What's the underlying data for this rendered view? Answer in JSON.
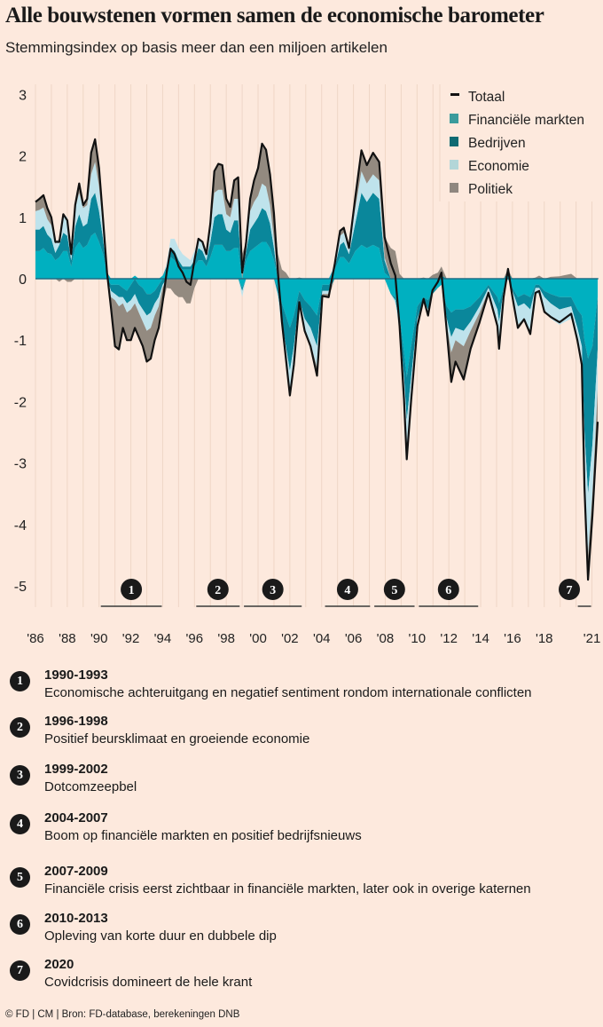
{
  "title": "Alle bouwstenen vormen samen de economische barometer",
  "subtitle": "Stemmingsindex op basis meer dan een miljoen artikelen",
  "chart_data": {
    "type": "area",
    "stacked": true,
    "ylim": [
      -5.3,
      3
    ],
    "xlim": [
      1986,
      2021.4
    ],
    "y_ticks": [
      3,
      2,
      1,
      0,
      -1,
      -2,
      -3,
      -4,
      -5
    ],
    "y_tick_labels": [
      "3",
      "2",
      "1",
      "0",
      "-1",
      "-2",
      "-3",
      "-4",
      "-5"
    ],
    "x_ticks": [
      1986,
      1988,
      1990,
      1992,
      1994,
      1996,
      1998,
      2000,
      2002,
      2004,
      2006,
      2008,
      2010,
      2012,
      2014,
      2016,
      2018,
      2021
    ],
    "x_tick_labels": [
      "'86",
      "'88",
      "'90",
      "'92",
      "'94",
      "'96",
      "'98",
      "'00",
      "'02",
      "'04",
      "'06",
      "'08",
      "'10",
      "'12",
      "'14",
      "'16",
      "'18",
      "'21"
    ],
    "grid": "vertical yearly lines",
    "legend_position": "top-right",
    "legend": [
      {
        "name": "Totaal",
        "color": "#111111",
        "kind": "line"
      },
      {
        "name": "Financiële markten",
        "color": "#3a9b9c",
        "kind": "area"
      },
      {
        "name": "Bedrijven",
        "color": "#0e6a72",
        "kind": "area"
      },
      {
        "name": "Economie",
        "color": "#b3d6d8",
        "kind": "area"
      },
      {
        "name": "Politiek",
        "color": "#8f877f",
        "kind": "area"
      }
    ],
    "area_colors": [
      "#00b0c0",
      "#0a879b",
      "#bfe3ec",
      "#938a80"
    ],
    "series_order": [
      "Financiële markten",
      "Bedrijven",
      "Economie",
      "Politiek"
    ],
    "columns": [
      "year",
      "Totaal",
      "Financiële markten",
      "Bedrijven",
      "Economie",
      "Politiek"
    ],
    "points": [
      [
        1986.0,
        1.25,
        0.45,
        0.35,
        0.3,
        0.15
      ],
      [
        1986.25,
        1.3,
        0.45,
        0.35,
        0.32,
        0.18
      ],
      [
        1986.5,
        1.36,
        0.5,
        0.36,
        0.3,
        0.2
      ],
      [
        1986.75,
        1.15,
        0.42,
        0.3,
        0.25,
        0.18
      ],
      [
        1987.0,
        1.0,
        0.4,
        0.25,
        0.22,
        0.13
      ],
      [
        1987.25,
        0.6,
        0.3,
        0.12,
        0.15,
        0.03
      ],
      [
        1987.5,
        0.6,
        0.35,
        0.2,
        0.1,
        -0.05
      ],
      [
        1987.75,
        1.05,
        0.45,
        0.3,
        0.3,
        0
      ],
      [
        1988.0,
        0.95,
        0.45,
        0.25,
        0.3,
        -0.05
      ],
      [
        1988.25,
        0.4,
        0.2,
        0.1,
        0.15,
        -0.05
      ],
      [
        1988.5,
        1.2,
        0.5,
        0.35,
        0.3,
        0.05
      ],
      [
        1988.75,
        1.55,
        0.6,
        0.45,
        0.35,
        0.15
      ],
      [
        1989.0,
        1.2,
        0.5,
        0.35,
        0.3,
        0.05
      ],
      [
        1989.25,
        1.3,
        0.55,
        0.35,
        0.3,
        0.1
      ],
      [
        1989.5,
        2.05,
        0.7,
        0.6,
        0.4,
        0.35
      ],
      [
        1989.75,
        2.27,
        0.75,
        0.65,
        0.5,
        0.37
      ],
      [
        1990.0,
        1.8,
        0.6,
        0.5,
        0.4,
        0.3
      ],
      [
        1990.25,
        0.97,
        0.4,
        0.25,
        0.2,
        0.12
      ],
      [
        1990.5,
        0.1,
        0.1,
        0,
        0,
        0
      ],
      [
        1990.75,
        -0.48,
        -0.1,
        -0.1,
        -0.1,
        -0.18
      ],
      [
        1991.0,
        -1.1,
        -0.1,
        -0.15,
        -0.1,
        -0.75
      ],
      [
        1991.25,
        -1.15,
        -0.1,
        -0.2,
        -0.15,
        -0.7
      ],
      [
        1991.5,
        -0.8,
        -0.15,
        -0.15,
        -0.1,
        -0.4
      ],
      [
        1991.75,
        -1.0,
        -0.2,
        -0.2,
        -0.15,
        -0.45
      ],
      [
        1992.0,
        -1.0,
        -0.1,
        -0.25,
        -0.15,
        -0.5
      ],
      [
        1992.25,
        -0.8,
        0.05,
        -0.25,
        -0.15,
        -0.45
      ],
      [
        1992.5,
        -0.95,
        -0.1,
        -0.3,
        -0.15,
        -0.4
      ],
      [
        1992.75,
        -1.1,
        -0.15,
        -0.35,
        -0.2,
        -0.4
      ],
      [
        1993.0,
        -1.35,
        -0.25,
        -0.35,
        -0.25,
        -0.5
      ],
      [
        1993.25,
        -1.3,
        -0.25,
        -0.3,
        -0.25,
        -0.5
      ],
      [
        1993.5,
        -1.0,
        -0.2,
        -0.2,
        -0.2,
        -0.4
      ],
      [
        1993.75,
        -0.8,
        -0.1,
        -0.2,
        -0.15,
        -0.35
      ],
      [
        1994.0,
        -0.38,
        0.05,
        -0.1,
        -0.05,
        -0.28
      ],
      [
        1994.25,
        0.1,
        0.15,
        0.05,
        0.05,
        -0.15
      ],
      [
        1994.5,
        0.49,
        0.35,
        0.15,
        0.15,
        -0.16
      ],
      [
        1994.75,
        0.4,
        0.3,
        0.15,
        0.2,
        -0.25
      ],
      [
        1995.0,
        0.2,
        0.2,
        0.1,
        0.2,
        -0.3
      ],
      [
        1995.25,
        0.1,
        0.15,
        0.05,
        0.2,
        -0.3
      ],
      [
        1995.5,
        -0.05,
        0.15,
        0.05,
        0.15,
        -0.4
      ],
      [
        1995.75,
        -0.1,
        0.15,
        0.05,
        0.1,
        -0.4
      ],
      [
        1996.0,
        0.3,
        0.2,
        0.1,
        0.15,
        -0.15
      ],
      [
        1996.25,
        0.65,
        0.3,
        0.2,
        0.15,
        0
      ],
      [
        1996.5,
        0.6,
        0.3,
        0.15,
        0.15,
        0
      ],
      [
        1996.75,
        0.4,
        0.2,
        0.1,
        0.1,
        0
      ],
      [
        1997.0,
        0.9,
        0.35,
        0.25,
        0.2,
        0.1
      ],
      [
        1997.25,
        1.75,
        0.55,
        0.45,
        0.4,
        0.35
      ],
      [
        1997.5,
        1.87,
        0.55,
        0.5,
        0.4,
        0.42
      ],
      [
        1997.75,
        1.85,
        0.55,
        0.5,
        0.4,
        0.4
      ],
      [
        1998.0,
        1.3,
        0.45,
        0.35,
        0.25,
        0.25
      ],
      [
        1998.25,
        1.17,
        0.45,
        0.3,
        0.25,
        0.17
      ],
      [
        1998.5,
        1.6,
        0.5,
        0.45,
        0.35,
        0.3
      ],
      [
        1998.75,
        1.65,
        0.5,
        0.45,
        0.35,
        0.35
      ],
      [
        1999.0,
        0.1,
        -0.15,
        -0.05,
        -0.1,
        0.4
      ],
      [
        1999.25,
        0.6,
        0.3,
        0.15,
        0.1,
        0.05
      ],
      [
        1999.5,
        1.3,
        0.45,
        0.35,
        0.3,
        0.2
      ],
      [
        1999.75,
        1.6,
        0.5,
        0.4,
        0.35,
        0.35
      ],
      [
        2000.0,
        1.8,
        0.55,
        0.45,
        0.35,
        0.45
      ],
      [
        2000.25,
        2.2,
        0.6,
        0.55,
        0.4,
        0.65
      ],
      [
        2000.5,
        2.1,
        0.6,
        0.5,
        0.4,
        0.6
      ],
      [
        2000.75,
        1.7,
        0.5,
        0.4,
        0.3,
        0.5
      ],
      [
        2001.0,
        1.07,
        0.3,
        0.2,
        0.15,
        0.42
      ],
      [
        2001.25,
        0.1,
        -0.15,
        -0.1,
        -0.05,
        0.4
      ],
      [
        2001.5,
        -0.7,
        -0.4,
        -0.3,
        -0.15,
        0.15
      ],
      [
        2001.75,
        -1.3,
        -0.6,
        -0.5,
        -0.3,
        0.1
      ],
      [
        2002.0,
        -1.9,
        -0.8,
        -0.7,
        -0.4,
        0
      ],
      [
        2002.25,
        -1.4,
        -0.6,
        -0.5,
        -0.3,
        0
      ],
      [
        2002.59,
        -0.38,
        -0.2,
        -0.15,
        -0.05,
        0.02
      ],
      [
        2002.93,
        -0.85,
        -0.35,
        -0.3,
        -0.2,
        0
      ],
      [
        2003.3,
        -1.1,
        -0.45,
        -0.35,
        -0.25,
        -0.05
      ],
      [
        2003.71,
        -1.58,
        -0.6,
        -0.5,
        -0.35,
        -0.13
      ],
      [
        2004.04,
        -0.28,
        -0.1,
        -0.1,
        -0.05,
        -0.03
      ],
      [
        2004.44,
        -0.3,
        -0.1,
        -0.1,
        -0.05,
        -0.05
      ],
      [
        2004.83,
        0.25,
        0.15,
        0.05,
        0.05,
        0
      ],
      [
        2005.16,
        0.78,
        0.35,
        0.2,
        0.15,
        0.08
      ],
      [
        2005.39,
        0.83,
        0.35,
        0.25,
        0.15,
        0.08
      ],
      [
        2005.72,
        0.5,
        0.25,
        0.15,
        0.1,
        0
      ],
      [
        2006.11,
        1.32,
        0.45,
        0.45,
        0.25,
        0.17
      ],
      [
        2006.5,
        2.09,
        0.55,
        0.85,
        0.35,
        0.34
      ],
      [
        2006.84,
        1.85,
        0.5,
        0.75,
        0.3,
        0.3
      ],
      [
        2007.23,
        2.05,
        0.55,
        0.85,
        0.3,
        0.35
      ],
      [
        2007.62,
        1.9,
        0.5,
        0.8,
        0.3,
        0.3
      ],
      [
        2007.96,
        0.68,
        0.1,
        0.2,
        0.05,
        0.33
      ],
      [
        2008.35,
        0.25,
        -0.25,
        0,
        0,
        0.5
      ],
      [
        2008.63,
        0.05,
        -0.3,
        -0.05,
        -0.05,
        0.45
      ],
      [
        2008.9,
        -0.77,
        -0.6,
        -0.15,
        -0.1,
        0.08
      ],
      [
        2009.18,
        -1.97,
        -1.2,
        -0.4,
        -0.3,
        -0.07
      ],
      [
        2009.35,
        -2.94,
        -1.6,
        -0.7,
        -0.5,
        -0.14
      ],
      [
        2009.63,
        -1.97,
        -1.1,
        -0.5,
        -0.3,
        -0.07
      ],
      [
        2010.02,
        -0.77,
        -0.45,
        -0.2,
        -0.1,
        -0.02
      ],
      [
        2010.41,
        -0.33,
        -0.3,
        -0.05,
        0,
        0.02
      ],
      [
        2010.69,
        -0.6,
        -0.35,
        -0.15,
        -0.05,
        -0.05
      ],
      [
        2010.97,
        -0.19,
        -0.2,
        -0.05,
        0,
        0.06
      ],
      [
        2011.31,
        -0.05,
        -0.15,
        0,
        0,
        0.1
      ],
      [
        2011.53,
        0.1,
        -0.1,
        0.05,
        0,
        0.15
      ],
      [
        2011.87,
        -0.85,
        -0.45,
        -0.2,
        -0.1,
        -0.1
      ],
      [
        2012.15,
        -1.68,
        -0.55,
        -0.4,
        -0.25,
        -0.48
      ],
      [
        2012.42,
        -1.35,
        -0.5,
        -0.3,
        -0.2,
        -0.35
      ],
      [
        2012.93,
        -1.64,
        -0.5,
        -0.35,
        -0.25,
        -0.54
      ],
      [
        2013.37,
        -1.14,
        -0.45,
        -0.25,
        -0.15,
        -0.29
      ],
      [
        2013.93,
        -0.71,
        -0.3,
        -0.15,
        -0.1,
        -0.16
      ],
      [
        2014.49,
        -0.23,
        -0.1,
        -0.05,
        -0.05,
        -0.03
      ],
      [
        2015.05,
        -0.77,
        -0.3,
        -0.2,
        -0.2,
        -0.07
      ],
      [
        2015.16,
        -1.14,
        -0.4,
        -0.3,
        -0.3,
        -0.14
      ],
      [
        2015.44,
        -0.3,
        -0.15,
        -0.05,
        -0.1,
        0
      ],
      [
        2015.72,
        0.16,
        0.05,
        0.05,
        0,
        0.06
      ],
      [
        2016.0,
        -0.3,
        -0.15,
        -0.05,
        -0.1,
        0
      ],
      [
        2016.34,
        -0.8,
        -0.3,
        -0.15,
        -0.3,
        -0.05
      ],
      [
        2016.73,
        -0.66,
        -0.25,
        -0.15,
        -0.25,
        -0.01
      ],
      [
        2017.12,
        -0.9,
        -0.3,
        -0.2,
        -0.35,
        -0.05
      ],
      [
        2017.45,
        -0.23,
        -0.1,
        -0.05,
        -0.1,
        0.02
      ],
      [
        2017.68,
        -0.2,
        -0.1,
        -0.05,
        -0.1,
        0.05
      ],
      [
        2018.01,
        -0.54,
        -0.2,
        -0.1,
        -0.2,
        -0.04
      ],
      [
        2018.4,
        -0.62,
        -0.25,
        -0.15,
        -0.25,
        0.03
      ],
      [
        2018.96,
        -0.71,
        -0.3,
        -0.2,
        -0.25,
        0.04
      ],
      [
        2019.69,
        -0.57,
        -0.3,
        -0.15,
        -0.2,
        0.08
      ],
      [
        2020.08,
        -1.0,
        -0.5,
        -0.3,
        -0.2,
        0
      ],
      [
        2020.36,
        -1.4,
        -0.6,
        -0.5,
        -0.25,
        -0.05
      ],
      [
        2020.53,
        -3.4,
        -1.0,
        -1.5,
        -0.7,
        -0.2
      ],
      [
        2020.75,
        -4.9,
        -1.3,
        -2.2,
        -1.0,
        -0.4
      ],
      [
        2021.03,
        -3.85,
        -1.1,
        -1.6,
        -0.8,
        -0.35
      ],
      [
        2021.36,
        -2.33,
        -0.3,
        -0.85,
        -0.65,
        -0.53
      ]
    ],
    "periods": [
      {
        "label": "1",
        "start": 1990,
        "end": 1994
      },
      {
        "label": "2",
        "start": 1996,
        "end": 1998.9
      },
      {
        "label": "3",
        "start": 1999,
        "end": 2002.8
      },
      {
        "label": "4",
        "start": 2004.1,
        "end": 2007.1
      },
      {
        "label": "5",
        "start": 2007.2,
        "end": 2009.9
      },
      {
        "label": "6",
        "start": 2010,
        "end": 2013.9
      },
      {
        "label": "7",
        "start": 2020,
        "end": 2021
      }
    ]
  },
  "notes": [
    {
      "num": "1",
      "period": "1990-1993",
      "text": "Economische achteruitgang en negatief sentiment rondom internationale conflicten"
    },
    {
      "num": "2",
      "period": "1996-1998",
      "text": "Positief beursklimaat en groeiende economie"
    },
    {
      "num": "3",
      "period": "1999-2002",
      "text": "Dotcomzeepbel"
    },
    {
      "num": "4",
      "period": "2004-2007",
      "text": "Boom op financiële markten en positief bedrijfsnieuws"
    },
    {
      "num": "5",
      "period": "2007-2009",
      "text": "Financiële crisis eerst zichtbaar in financiële markten, later ook in overige katernen"
    },
    {
      "num": "6",
      "period": "2010-2013",
      "text": "Opleving van korte duur en dubbele dip"
    },
    {
      "num": "7",
      "period": "2020",
      "text": "Covidcrisis domineert de hele krant"
    }
  ],
  "footer": "© FD | CM | Bron: FD-database, berekeningen DNB"
}
